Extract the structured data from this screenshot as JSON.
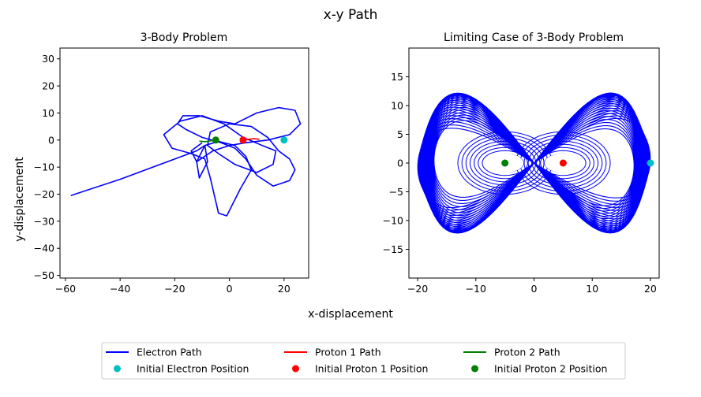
{
  "figure": {
    "suptitle": "x-y Path",
    "xlabel": "x-displacement",
    "ylabel": "y-displacement"
  },
  "legend": {
    "placement": "bottom-center",
    "entries": [
      {
        "label": "Electron Path",
        "kind": "line",
        "color": "#0000ff"
      },
      {
        "label": "Initial Electron Position",
        "kind": "marker",
        "color": "#00bfbf"
      },
      {
        "label": "Proton 1 Path",
        "kind": "line",
        "color": "#ff0000"
      },
      {
        "label": "Initial Proton 1 Position",
        "kind": "marker",
        "color": "#ff0000"
      },
      {
        "label": "Proton 2 Path",
        "kind": "line",
        "color": "#008000"
      },
      {
        "label": "Initial Proton 2 Position",
        "kind": "marker",
        "color": "#008000"
      }
    ]
  },
  "chart_data": [
    {
      "type": "line",
      "title": "3-Body Problem",
      "xlim": [
        -62,
        29
      ],
      "ylim": [
        -51,
        34
      ],
      "xticks": [
        -60,
        -40,
        -20,
        0,
        20
      ],
      "yticks": [
        -50,
        -40,
        -30,
        -20,
        -10,
        0,
        10,
        20,
        30
      ],
      "grid": false,
      "series": [
        {
          "name": "Electron Path",
          "color": "#0000ff",
          "points": [
            [
              -58,
              -20.5
            ],
            [
              -40,
              -14.5
            ],
            [
              -24,
              -8.5
            ],
            [
              -12,
              -4
            ],
            [
              -9,
              -2
            ],
            [
              -8,
              -8
            ],
            [
              -11,
              -14
            ],
            [
              -12,
              -8
            ],
            [
              -9,
              -2
            ],
            [
              -4,
              -0.5
            ],
            [
              2,
              -2
            ],
            [
              6,
              -6
            ],
            [
              8,
              -11
            ],
            [
              4,
              -18
            ],
            [
              -1,
              -28
            ],
            [
              -4,
              -27
            ],
            [
              -7,
              -14
            ],
            [
              -9,
              -7
            ],
            [
              -14,
              -5
            ],
            [
              -21,
              -3
            ],
            [
              -24,
              2
            ],
            [
              -18,
              7
            ],
            [
              -10,
              9
            ],
            [
              -2,
              6
            ],
            [
              5,
              1
            ],
            [
              12,
              -2
            ],
            [
              17,
              -4
            ],
            [
              16,
              -9
            ],
            [
              10,
              -12
            ],
            [
              2,
              -9
            ],
            [
              -4,
              -5
            ],
            [
              -8,
              -2
            ],
            [
              -7,
              3
            ],
            [
              0,
              6
            ],
            [
              8,
              5
            ],
            [
              14,
              1
            ],
            [
              18,
              -4
            ],
            [
              22,
              -7
            ],
            [
              24,
              -11
            ],
            [
              22,
              -15
            ],
            [
              16,
              -17
            ],
            [
              10,
              -13
            ],
            [
              6,
              -7
            ],
            [
              2,
              -3
            ],
            [
              -3,
              -1
            ],
            [
              -10,
              1
            ],
            [
              -16,
              4
            ],
            [
              -19,
              6
            ],
            [
              -17,
              9
            ],
            [
              -11,
              9
            ],
            [
              -4,
              7
            ],
            [
              2,
              6
            ],
            [
              10,
              10
            ],
            [
              18,
              12
            ],
            [
              24,
              11
            ],
            [
              26,
              6
            ],
            [
              22,
              2
            ],
            [
              14,
              0
            ],
            [
              6,
              -1
            ],
            [
              0,
              -2
            ],
            [
              -6,
              -4
            ],
            [
              -12,
              -8
            ],
            [
              -14,
              -4
            ],
            [
              -10,
              -1
            ]
          ]
        },
        {
          "name": "Proton 1 Path",
          "color": "#ff0000",
          "points": [
            [
              5,
              0
            ],
            [
              7,
              0.3
            ],
            [
              9,
              0.5
            ],
            [
              11,
              0.3
            ]
          ]
        },
        {
          "name": "Proton 2 Path",
          "color": "#008000",
          "points": [
            [
              -5,
              0
            ],
            [
              -7,
              -0.3
            ],
            [
              -9,
              -0.6
            ],
            [
              -11,
              -0.4
            ]
          ]
        }
      ],
      "markers": [
        {
          "name": "Initial Electron Position",
          "color": "#00bfbf",
          "x": 20,
          "y": 0
        },
        {
          "name": "Initial Proton 1 Position",
          "color": "#ff0000",
          "x": 5,
          "y": 0
        },
        {
          "name": "Initial Proton 2 Position",
          "color": "#008000",
          "x": -5,
          "y": 0
        }
      ]
    },
    {
      "type": "line",
      "title": "Limiting Case of 3-Body Problem",
      "xlim": [
        -21.5,
        21.5
      ],
      "ylim": [
        -20,
        20
      ],
      "xticks": [
        -20,
        -10,
        0,
        10,
        20
      ],
      "yticks": [
        -15,
        -10,
        -5,
        0,
        5,
        10,
        15
      ],
      "grid": false,
      "series": [
        {
          "name": "Electron Path",
          "color": "#0000ff",
          "pattern": "figure-eight",
          "amplitude_x": 20,
          "amplitude_y": 13.5
        }
      ],
      "markers": [
        {
          "name": "Initial Electron Position",
          "color": "#00bfbf",
          "x": 20,
          "y": 0
        },
        {
          "name": "Initial Proton 1 Position",
          "color": "#ff0000",
          "x": 5,
          "y": 0
        },
        {
          "name": "Initial Proton 2 Position",
          "color": "#008000",
          "x": -5,
          "y": 0
        }
      ]
    }
  ]
}
